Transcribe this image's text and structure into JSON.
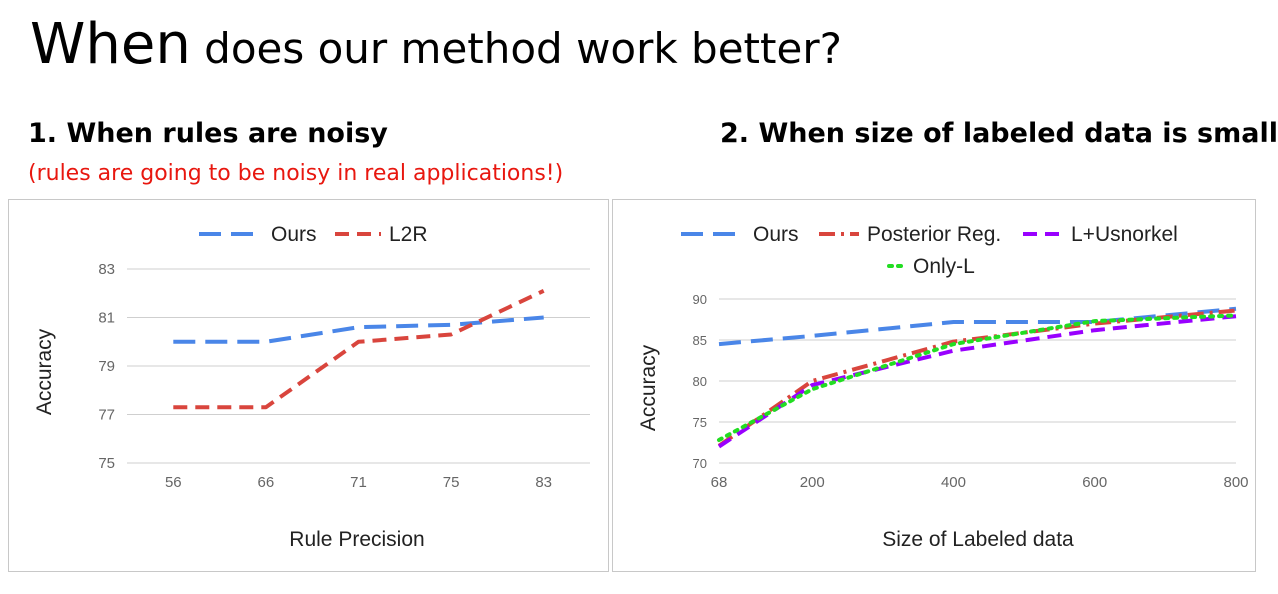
{
  "slide": {
    "title_word": "When",
    "title_rest": " does our method work better?",
    "left_heading": "1. When rules are noisy",
    "left_note": "(rules are going to be noisy in real applications!)",
    "right_heading": "2. When size of labeled data is small"
  },
  "chart_data": [
    {
      "type": "line",
      "xlabel": "Rule Precision",
      "ylabel": "Accuracy",
      "categories": [
        "56",
        "66",
        "71",
        "75",
        "83"
      ],
      "yticks": [
        "75",
        "77",
        "79",
        "81",
        "83"
      ],
      "ylim": [
        75,
        83
      ],
      "grid": true,
      "legend_position": "top",
      "series": [
        {
          "name": "Ours",
          "color": "#4a86e8",
          "dash": "long-dash",
          "values": [
            80.0,
            80.0,
            80.6,
            80.7,
            81.0
          ]
        },
        {
          "name": "L2R",
          "color": "#d9453d",
          "dash": "dash",
          "values": [
            77.3,
            77.3,
            80.0,
            80.3,
            82.1
          ]
        }
      ]
    },
    {
      "type": "line",
      "xlabel": "Size of Labeled data",
      "ylabel": "Accuracy",
      "xticks": [
        "68",
        "200",
        "400",
        "600",
        "800"
      ],
      "yticks": [
        "70",
        "75",
        "80",
        "85",
        "90"
      ],
      "xlim": [
        68,
        800
      ],
      "ylim": [
        70,
        90
      ],
      "grid": true,
      "legend_position": "top",
      "x": [
        68,
        200,
        400,
        600,
        800
      ],
      "series": [
        {
          "name": "Ours",
          "color": "#4a86e8",
          "dash": "long-dash",
          "values": [
            84.5,
            85.5,
            87.2,
            87.2,
            88.8
          ]
        },
        {
          "name": "Posterior Reg.",
          "color": "#d9453d",
          "dash": "dash-dot",
          "values": [
            72.1,
            80.0,
            84.8,
            87.0,
            88.6
          ]
        },
        {
          "name": "L+Usnorkel",
          "color": "#9900ff",
          "dash": "dash",
          "values": [
            72.0,
            79.5,
            83.7,
            86.2,
            87.9
          ]
        },
        {
          "name": "Only-L",
          "color": "#22dd22",
          "dash": "dot",
          "values": [
            72.8,
            79.0,
            84.5,
            87.3,
            88.0
          ]
        }
      ]
    }
  ]
}
